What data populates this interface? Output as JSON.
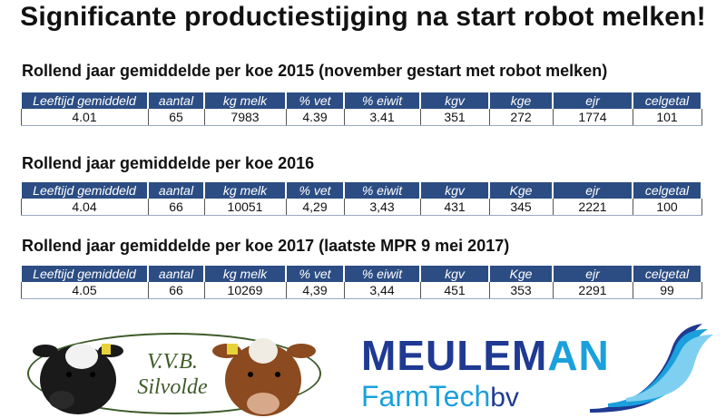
{
  "title": "Significante productiestijging na start robot melken!",
  "columns": [
    "Leeftijd gemiddeld",
    "aantal",
    "kg melk",
    "% vet",
    "% eiwit",
    "kgv",
    "kge",
    "ejr",
    "celgetal"
  ],
  "sections": [
    {
      "heading": "Rollend jaar gemiddelde per koe 2015 (november gestart met robot melken)",
      "columns": [
        "Leeftijd gemiddeld",
        "aantal",
        "kg melk",
        "% vet",
        "% eiwit",
        "kgv",
        "kge",
        "ejr",
        "celgetal"
      ],
      "values": [
        "4.01",
        "65",
        "7983",
        "4.39",
        "3.41",
        "351",
        "272",
        "1774",
        "101"
      ]
    },
    {
      "heading": "Rollend jaar gemiddelde per koe 2016",
      "columns": [
        "Leeftijd gemiddeld",
        "aantal",
        "kg melk",
        "% vet",
        "% eiwit",
        "kgv",
        "Kge",
        "ejr",
        "celgetal"
      ],
      "values": [
        "4.04",
        "66",
        "10051",
        "4,29",
        "3,43",
        "431",
        "345",
        "2221",
        "100"
      ]
    },
    {
      "heading": "Rollend jaar gemiddelde per koe 2017 (laatste MPR 9 mei 2017)",
      "columns": [
        "Leeftijd gemiddeld",
        "aantal",
        "kg melk",
        "% vet",
        "% eiwit",
        "kgv",
        "Kge",
        "ejr",
        "celgetal"
      ],
      "values": [
        "4.05",
        "66",
        "10269",
        "4,39",
        "3,44",
        "451",
        "353",
        "2291",
        "99"
      ]
    }
  ],
  "logos": {
    "vvb_line1": "V.V.B.",
    "vvb_line2": "Silvolde",
    "meuleman_a": "MEULEM",
    "meuleman_b": "AN",
    "farmtech_a": "FarmTech",
    "farmtech_b": "bv"
  },
  "colors": {
    "header_bg": "#2c4d83",
    "meuleman_blue": "#1f3a93",
    "meuleman_cyan": "#1aa0dc",
    "vvb_green": "#3e5b2a"
  }
}
